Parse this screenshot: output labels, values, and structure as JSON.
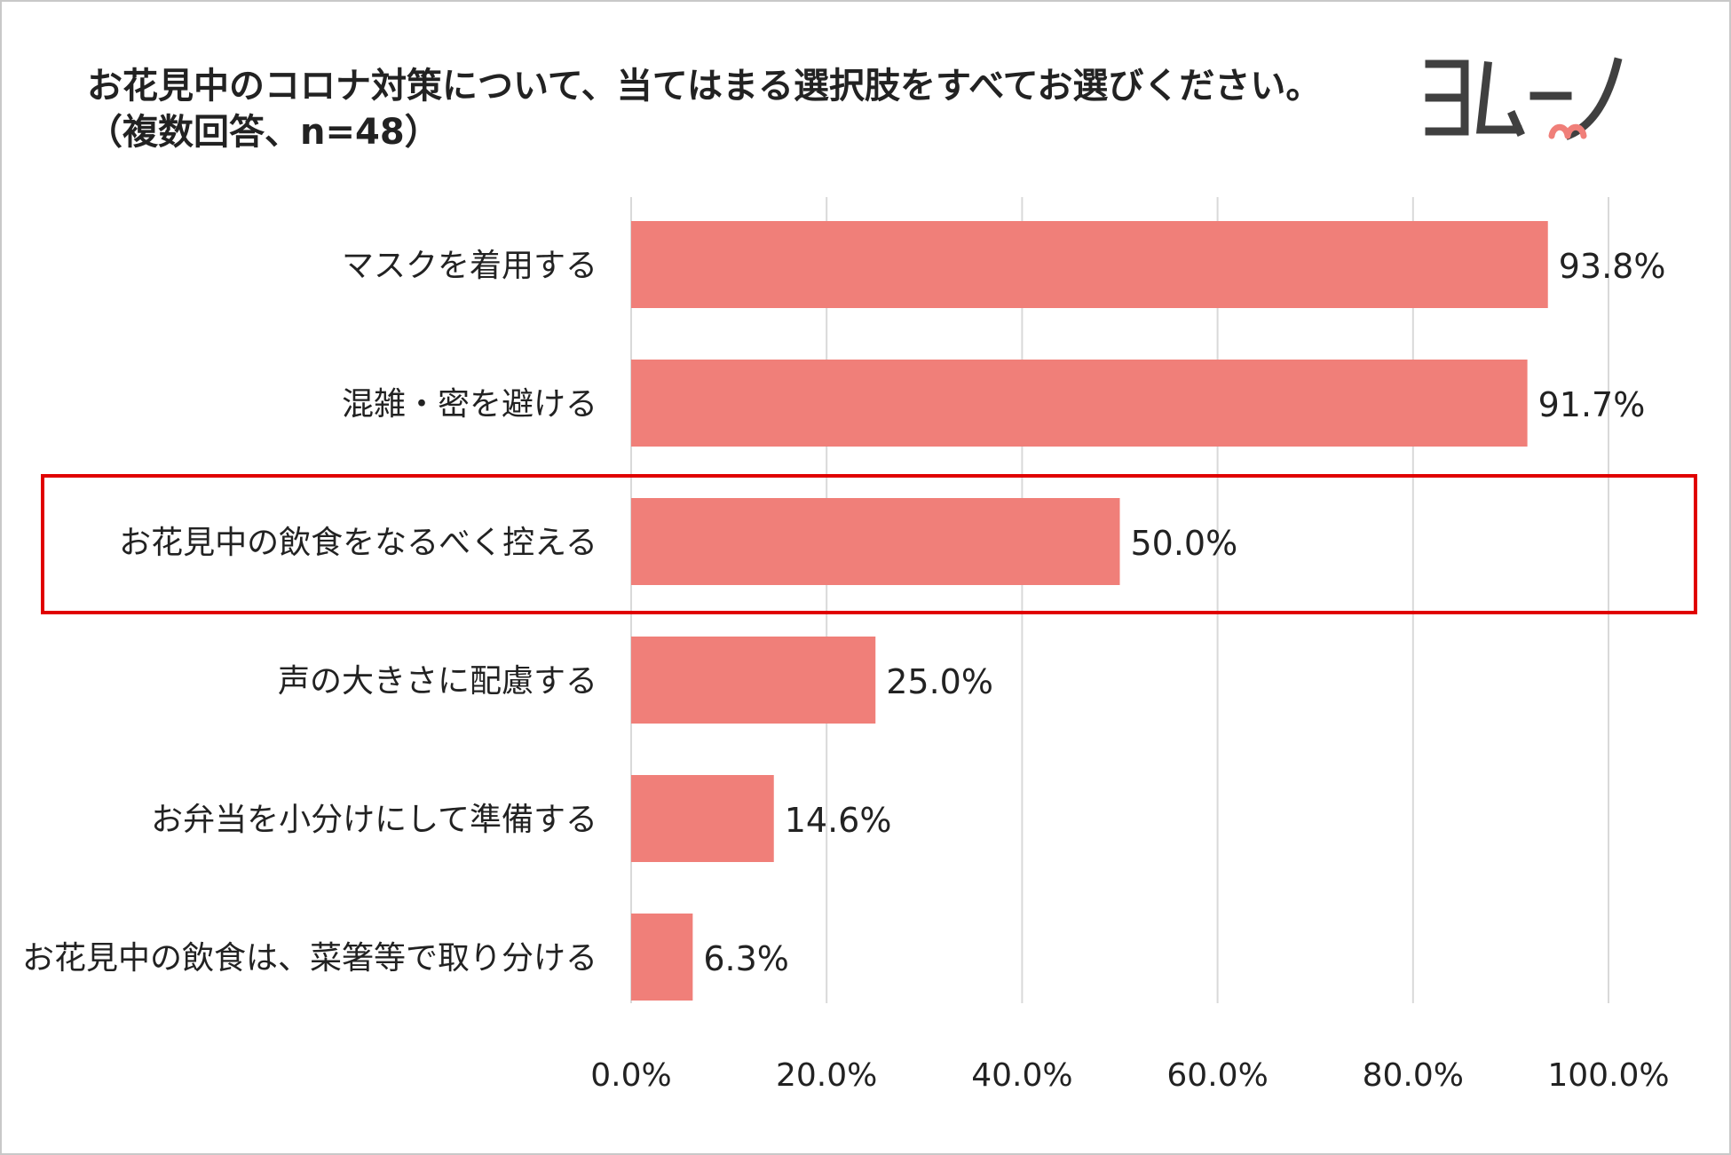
{
  "chart_data": {
    "type": "bar",
    "orientation": "horizontal",
    "title": "お花見中のコロナ対策について、当てはまる選択肢をすべてお選びください。",
    "subtitle": "（複数回答、n=48）",
    "categories": [
      "マスクを着用する",
      "混雑・密を避ける",
      "お花見中の飲食をなるべく控える",
      "声の大きさに配慮する",
      "お弁当を小分けにして準備する",
      "お花見中の飲食は、菜箸等で取り分ける"
    ],
    "values": [
      93.8,
      91.7,
      50.0,
      25.0,
      14.6,
      6.3
    ],
    "value_labels": [
      "93.8%",
      "91.7%",
      "50.0%",
      "25.0%",
      "14.6%",
      "6.3%"
    ],
    "xlim": [
      0,
      100
    ],
    "xticks": [
      0,
      20,
      40,
      60,
      80,
      100
    ],
    "xtick_labels": [
      "0.0%",
      "20.0%",
      "40.0%",
      "60.0%",
      "80.0%",
      "100.0%"
    ],
    "grid": "vertical",
    "bar_color": "#F07F79",
    "highlight_index": 2,
    "highlight_color": "#E00000"
  },
  "logo": {
    "text": "ヨムーノ",
    "color": "#404040",
    "accent_color": "#F07F79"
  }
}
